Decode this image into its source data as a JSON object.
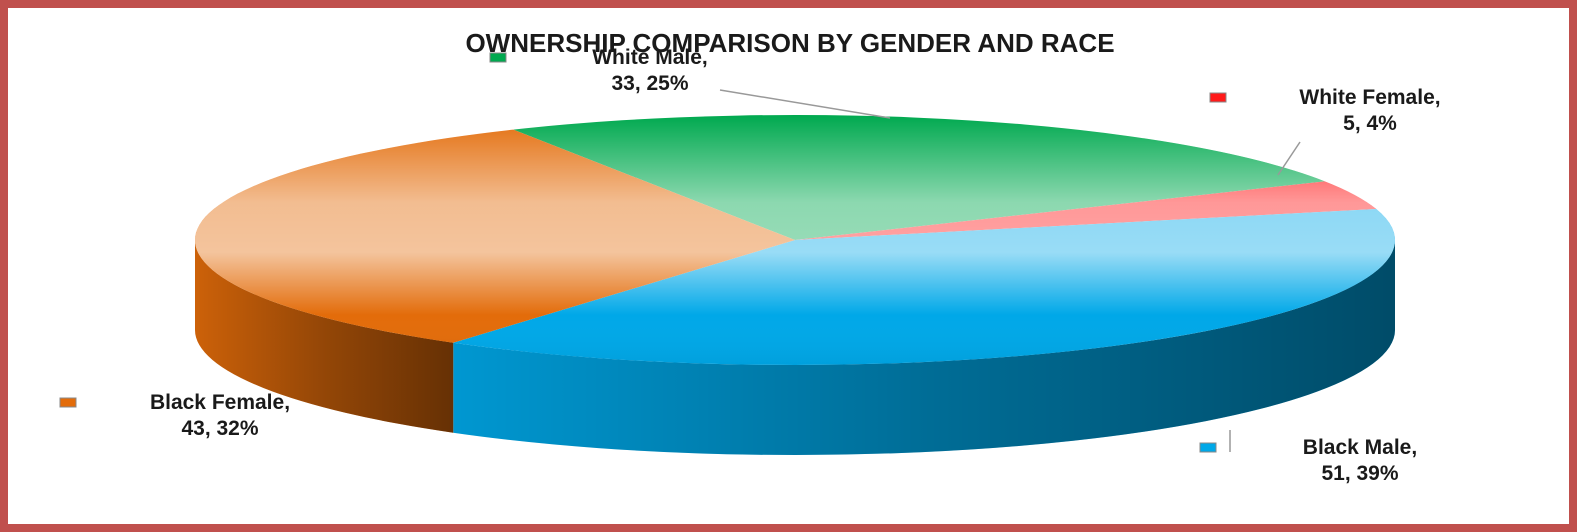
{
  "chart_data": {
    "type": "pie",
    "title": "OWNERSHIP COMPARISON BY GENDER AND RACE",
    "categories": [
      "White Male,",
      "White Female,",
      "Black Male,",
      "Black Female,"
    ],
    "values": [
      33,
      5,
      51,
      43
    ],
    "value_labels": [
      "33, 25%",
      "5, 4%",
      "51, 39%",
      "43, 32%"
    ],
    "colors": [
      "#00a94f",
      "#ff1a1a",
      "#00a8e8",
      "#e36c0a"
    ]
  }
}
